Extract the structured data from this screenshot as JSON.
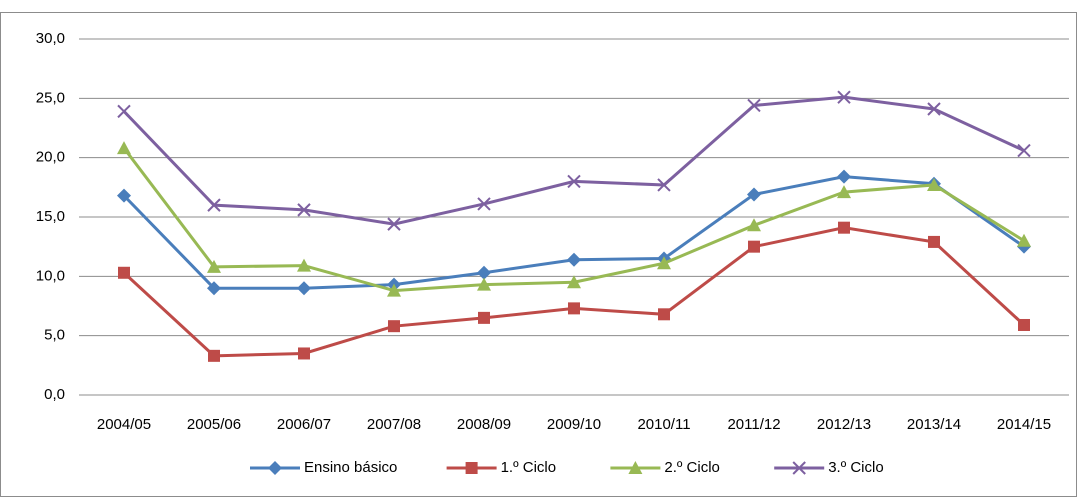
{
  "chart_data": {
    "type": "line",
    "categories": [
      "2004/05",
      "2005/06",
      "2006/07",
      "2007/08",
      "2008/09",
      "2009/10",
      "2010/11",
      "2011/12",
      "2012/13",
      "2013/14",
      "2014/15"
    ],
    "series": [
      {
        "name": "Ensino básico",
        "color": "#4a7ebb",
        "marker": "diamond",
        "values": [
          16.8,
          9.0,
          9.0,
          9.3,
          10.3,
          11.4,
          11.5,
          16.9,
          18.4,
          17.8,
          12.5
        ]
      },
      {
        "name": "1.º Ciclo",
        "color": "#be4b48",
        "marker": "square",
        "values": [
          10.3,
          3.3,
          3.5,
          5.8,
          6.5,
          7.3,
          6.8,
          12.5,
          14.1,
          12.9,
          5.9
        ]
      },
      {
        "name": "2.º Ciclo",
        "color": "#98b954",
        "marker": "triangle",
        "values": [
          20.8,
          10.8,
          10.9,
          8.8,
          9.3,
          9.5,
          11.1,
          14.3,
          17.1,
          17.7,
          13.0
        ]
      },
      {
        "name": "3.º Ciclo",
        "color": "#7d60a0",
        "marker": "x",
        "values": [
          23.9,
          16.0,
          15.6,
          14.4,
          16.1,
          18.0,
          17.7,
          24.4,
          25.1,
          24.1,
          20.6
        ]
      }
    ],
    "ylim": [
      0,
      30
    ],
    "yticks": [
      {
        "value": 0,
        "label": "0,0"
      },
      {
        "value": 5,
        "label": "5,0"
      },
      {
        "value": 10,
        "label": "10,0"
      },
      {
        "value": 15,
        "label": "15,0"
      },
      {
        "value": 20,
        "label": "20,0"
      },
      {
        "value": 25,
        "label": "25,0"
      },
      {
        "value": 30,
        "label": "30,0"
      }
    ],
    "grid": true,
    "legend": "bottom"
  }
}
